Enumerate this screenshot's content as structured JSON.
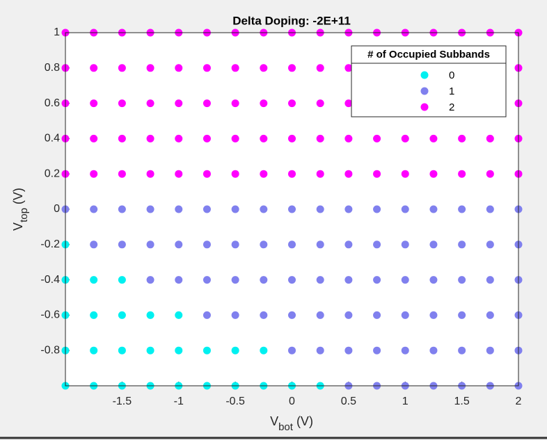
{
  "chart_data": {
    "type": "scatter",
    "title": "Delta Doping: -2E+11",
    "xlabel": [
      "V",
      "bot",
      "(V)"
    ],
    "ylabel": [
      "V",
      "top",
      "(V)"
    ],
    "xlim": [
      -2,
      2
    ],
    "ylim": [
      -1,
      1
    ],
    "xticks": [
      -1.5,
      -1,
      -0.5,
      0,
      0.5,
      1,
      1.5,
      2
    ],
    "yticks": [
      -0.8,
      -0.6,
      -0.4,
      -0.2,
      0,
      0.2,
      0.4,
      0.6,
      0.8,
      1
    ],
    "legend_title": "# of Occupied Subbands",
    "legend_position": "upper right",
    "series": [
      {
        "name": "0",
        "color": "#00f0f0",
        "x": [
          -2,
          -2,
          -1.75,
          -1.5,
          -2,
          -1.75,
          -1.5,
          -1.25,
          -1,
          -2,
          -1.75,
          -1.5,
          -1.25,
          -1,
          -0.75,
          -0.5,
          -0.25,
          -2,
          -1.75,
          -1.5,
          -1.25,
          -1,
          -0.75,
          -0.5,
          -0.25,
          0,
          0.25
        ],
        "values": [
          -0.2,
          -0.4,
          -0.4,
          -0.4,
          -0.6,
          -0.6,
          -0.6,
          -0.6,
          -0.6,
          -0.8,
          -0.8,
          -0.8,
          -0.8,
          -0.8,
          -0.8,
          -0.8,
          -0.8,
          -1,
          -1,
          -1,
          -1,
          -1,
          -1,
          -1,
          -1,
          -1,
          -1
        ]
      },
      {
        "name": "1",
        "color": "#8080ee",
        "x": [
          -2,
          -1.75,
          -1.5,
          -1.25,
          -1,
          -0.75,
          -0.5,
          -0.25,
          0,
          0.25,
          0.5,
          0.75,
          1,
          1.25,
          1.5,
          1.75,
          2,
          -1.75,
          -1.5,
          -1.25,
          -1,
          -0.75,
          -0.5,
          -0.25,
          0,
          0.25,
          0.5,
          0.75,
          1,
          1.25,
          1.5,
          1.75,
          2,
          -1.25,
          -1,
          -0.75,
          -0.5,
          -0.25,
          0,
          0.25,
          0.5,
          0.75,
          1,
          1.25,
          1.5,
          1.75,
          2,
          -0.75,
          -0.5,
          -0.25,
          0,
          0.25,
          0.5,
          0.75,
          1,
          1.25,
          1.5,
          1.75,
          2,
          0,
          0.25,
          0.5,
          0.75,
          1,
          1.25,
          1.5,
          1.75,
          2,
          0.5,
          0.75,
          1,
          1.25,
          1.5,
          1.75,
          2
        ],
        "values": [
          0,
          0,
          0,
          0,
          0,
          0,
          0,
          0,
          0,
          0,
          0,
          0,
          0,
          0,
          0,
          0,
          0,
          -0.2,
          -0.2,
          -0.2,
          -0.2,
          -0.2,
          -0.2,
          -0.2,
          -0.2,
          -0.2,
          -0.2,
          -0.2,
          -0.2,
          -0.2,
          -0.2,
          -0.2,
          -0.2,
          -0.4,
          -0.4,
          -0.4,
          -0.4,
          -0.4,
          -0.4,
          -0.4,
          -0.4,
          -0.4,
          -0.4,
          -0.4,
          -0.4,
          -0.4,
          -0.4,
          -0.6,
          -0.6,
          -0.6,
          -0.6,
          -0.6,
          -0.6,
          -0.6,
          -0.6,
          -0.6,
          -0.6,
          -0.6,
          -0.6,
          -0.8,
          -0.8,
          -0.8,
          -0.8,
          -0.8,
          -0.8,
          -0.8,
          -0.8,
          -0.8,
          -1,
          -1,
          -1,
          -1,
          -1,
          -1,
          -1
        ]
      },
      {
        "name": "2",
        "color": "#ff00ff",
        "x": [
          -2,
          -1.75,
          -1.5,
          -1.25,
          -1,
          -0.75,
          -0.5,
          -0.25,
          0,
          0.25,
          0.5,
          0.75,
          1,
          1.25,
          1.5,
          1.75,
          2,
          -2,
          -1.75,
          -1.5,
          -1.25,
          -1,
          -0.75,
          -0.5,
          -0.25,
          0,
          0.25,
          0.5,
          0.75,
          1,
          1.25,
          1.5,
          1.75,
          2,
          -2,
          -1.75,
          -1.5,
          -1.25,
          -1,
          -0.75,
          -0.5,
          -0.25,
          0,
          0.25,
          0.5,
          0.75,
          1,
          1.25,
          1.5,
          1.75,
          2,
          -2,
          -1.75,
          -1.5,
          -1.25,
          -1,
          -0.75,
          -0.5,
          -0.25,
          0,
          0.25,
          0.5,
          0.75,
          1,
          1.25,
          1.5,
          1.75,
          2,
          -2,
          -1.75,
          -1.5,
          -1.25,
          -1,
          -0.75,
          -0.5,
          -0.25,
          0,
          0.25,
          0.5,
          0.75,
          1,
          1.25,
          1.5,
          1.75,
          2
        ],
        "values": [
          0.2,
          0.2,
          0.2,
          0.2,
          0.2,
          0.2,
          0.2,
          0.2,
          0.2,
          0.2,
          0.2,
          0.2,
          0.2,
          0.2,
          0.2,
          0.2,
          0.2,
          0.4,
          0.4,
          0.4,
          0.4,
          0.4,
          0.4,
          0.4,
          0.4,
          0.4,
          0.4,
          0.4,
          0.4,
          0.4,
          0.4,
          0.4,
          0.4,
          0.4,
          0.6,
          0.6,
          0.6,
          0.6,
          0.6,
          0.6,
          0.6,
          0.6,
          0.6,
          0.6,
          0.6,
          0.6,
          0.6,
          0.6,
          0.6,
          0.6,
          0.6,
          0.8,
          0.8,
          0.8,
          0.8,
          0.8,
          0.8,
          0.8,
          0.8,
          0.8,
          0.8,
          0.8,
          0.8,
          0.8,
          0.8,
          0.8,
          0.8,
          0.8,
          1,
          1,
          1,
          1,
          1,
          1,
          1,
          1,
          1,
          1,
          1,
          1,
          1,
          1,
          1,
          1,
          1
        ]
      }
    ]
  }
}
